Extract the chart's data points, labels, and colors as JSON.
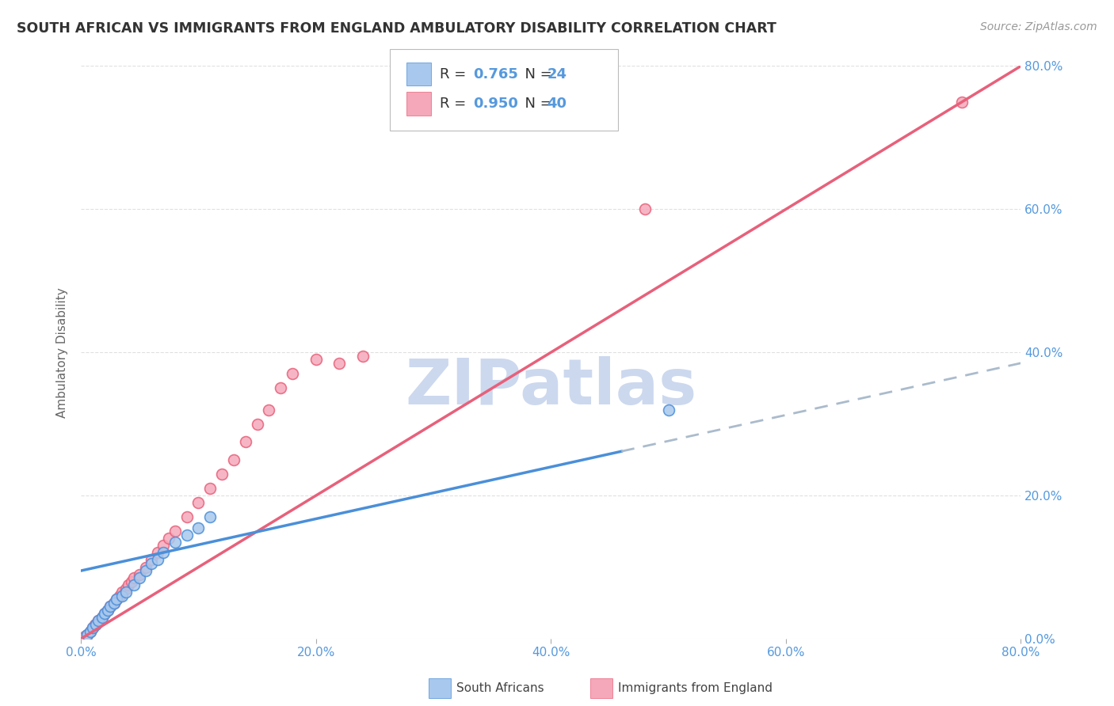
{
  "title": "SOUTH AFRICAN VS IMMIGRANTS FROM ENGLAND AMBULATORY DISABILITY CORRELATION CHART",
  "source": "Source: ZipAtlas.com",
  "ylabel": "Ambulatory Disability",
  "legend_label_bottom_left": "South Africans",
  "legend_label_bottom_right": "Immigrants from England",
  "blue_R": 0.765,
  "blue_N": 24,
  "pink_R": 0.95,
  "pink_N": 40,
  "blue_color": "#a8c8ed",
  "blue_line_color": "#4a8fd9",
  "pink_color": "#f5a8ba",
  "pink_line_color": "#e8607a",
  "dashed_color": "#aabbcc",
  "title_color": "#333333",
  "source_color": "#999999",
  "axis_label_color": "#5599dd",
  "watermark_color": "#ccd8ee",
  "background_color": "#ffffff",
  "grid_color": "#dddddd",
  "blue_scatter_x": [
    0.5,
    0.8,
    1.0,
    1.3,
    1.5,
    1.8,
    2.0,
    2.3,
    2.5,
    2.8,
    3.0,
    3.5,
    3.8,
    4.5,
    5.0,
    5.5,
    6.0,
    6.5,
    7.0,
    8.0,
    9.0,
    10.0,
    11.0,
    50.0
  ],
  "blue_scatter_y": [
    0.5,
    1.0,
    1.5,
    2.0,
    2.5,
    3.0,
    3.5,
    4.0,
    4.5,
    5.0,
    5.5,
    6.0,
    6.5,
    7.5,
    8.5,
    9.5,
    10.5,
    11.0,
    12.0,
    13.5,
    14.5,
    15.5,
    17.0,
    32.0
  ],
  "pink_scatter_x": [
    0.3,
    0.5,
    0.8,
    1.0,
    1.2,
    1.5,
    1.8,
    2.0,
    2.3,
    2.5,
    2.8,
    3.0,
    3.3,
    3.5,
    3.8,
    4.0,
    4.3,
    4.5,
    5.0,
    5.5,
    6.0,
    6.5,
    7.0,
    7.5,
    8.0,
    9.0,
    10.0,
    11.0,
    12.0,
    13.0,
    14.0,
    15.0,
    16.0,
    17.0,
    18.0,
    20.0,
    22.0,
    24.0,
    48.0,
    75.0
  ],
  "pink_scatter_y": [
    0.3,
    0.5,
    1.0,
    1.5,
    2.0,
    2.5,
    3.0,
    3.5,
    4.0,
    4.5,
    5.0,
    5.5,
    6.0,
    6.5,
    7.0,
    7.5,
    8.0,
    8.5,
    9.0,
    10.0,
    11.0,
    12.0,
    13.0,
    14.0,
    15.0,
    17.0,
    19.0,
    21.0,
    23.0,
    25.0,
    27.5,
    30.0,
    32.0,
    35.0,
    37.0,
    39.0,
    38.5,
    39.5,
    60.0,
    75.0
  ],
  "blue_line_x0": 0,
  "blue_line_y0": 9.5,
  "blue_line_x1": 80,
  "blue_line_y1": 38.5,
  "blue_solid_end": 46,
  "pink_line_x0": 0,
  "pink_line_y0": 0,
  "pink_line_x1": 80,
  "pink_line_y1": 80,
  "xlim": [
    0.0,
    80.0
  ],
  "ylim": [
    0.0,
    80.0
  ],
  "yticks": [
    0.0,
    20.0,
    40.0,
    60.0,
    80.0
  ],
  "xticks": [
    0.0,
    20.0,
    40.0,
    60.0,
    80.0
  ]
}
